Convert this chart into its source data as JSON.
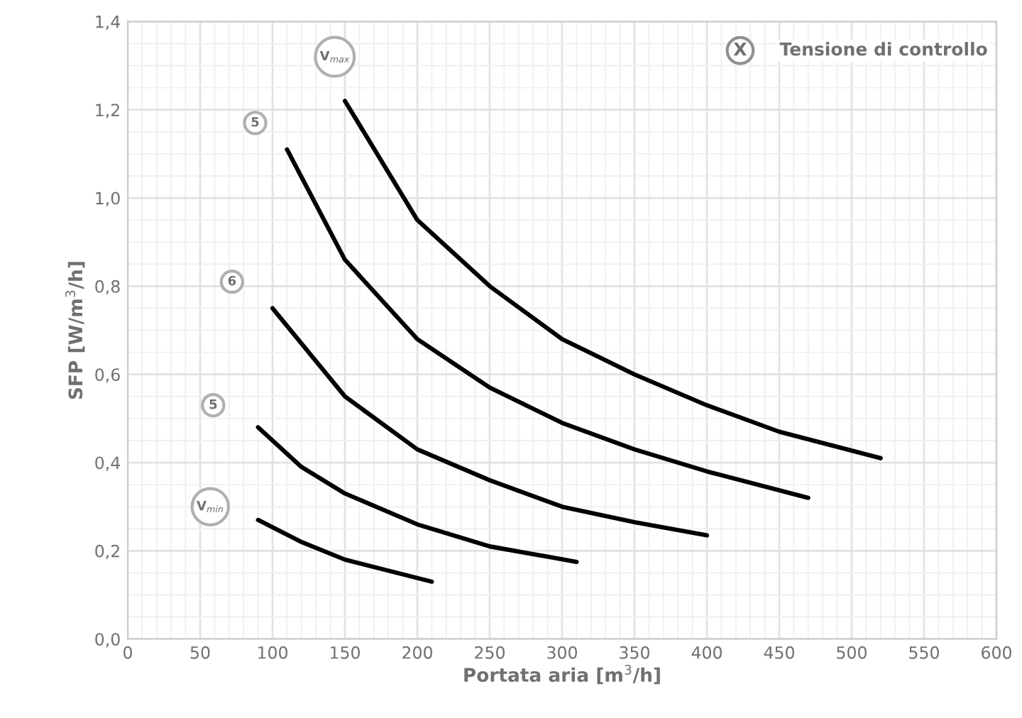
{
  "chart_data": {
    "type": "line",
    "xlabel": "Portata aria [m$^{3}$/h]",
    "ylabel": "SFP [W/m$^{3}$/h]",
    "series": [
      {
        "color": "#000000",
        "x": [
          150,
          200,
          250,
          300,
          350,
          400,
          450,
          520
        ],
        "values": [
          1.22,
          0.95,
          0.8,
          0.68,
          0.6,
          0.53,
          0.47,
          0.41
        ]
      },
      {
        "color": "#000000",
        "x": [
          110,
          150,
          200,
          250,
          300,
          350,
          400,
          470
        ],
        "values": [
          1.11,
          0.86,
          0.68,
          0.57,
          0.49,
          0.43,
          0.38,
          0.32
        ]
      },
      {
        "color": "#000000",
        "x": [
          100,
          150,
          200,
          250,
          300,
          350,
          400
        ],
        "values": [
          0.75,
          0.55,
          0.43,
          0.36,
          0.3,
          0.265,
          0.235
        ]
      },
      {
        "color": "#000000",
        "x": [
          90,
          120,
          150,
          200,
          250,
          310
        ],
        "values": [
          0.48,
          0.39,
          0.33,
          0.26,
          0.21,
          0.175
        ]
      },
      {
        "color": "#000000",
        "x": [
          90,
          120,
          150,
          210
        ],
        "values": [
          0.27,
          0.22,
          0.18,
          0.13
        ]
      }
    ],
    "annotations": [
      {
        "text": "V$_{max}$",
        "x": 143,
        "y": 1.32
      },
      {
        "text": "5",
        "x": 88,
        "y": 1.17
      },
      {
        "text": "6",
        "x": 72,
        "y": 0.81
      },
      {
        "text": "5",
        "x": 59,
        "y": 0.53
      },
      {
        "text": "V$_{min}$",
        "x": 57,
        "y": 0.3
      },
      "X",
      "Tensione di controllo"
    ],
    "xlim": [
      0,
      600
    ],
    "xticks": [
      0,
      50,
      100,
      150,
      200,
      250,
      300,
      350,
      400,
      450,
      500,
      550,
      600
    ],
    "ylim": [
      0,
      1.4
    ],
    "yticks": [
      {
        "value": 0,
        "label": "0,0"
      },
      {
        "value": 0.2,
        "label": "0,2"
      },
      {
        "value": 0.4,
        "label": "0,4"
      },
      {
        "value": 0.6,
        "label": "0,6"
      },
      {
        "value": 0.8,
        "label": "0,8"
      },
      {
        "value": 1.0,
        "label": "1,0"
      },
      {
        "value": 1.2,
        "label": "1,2"
      },
      {
        "value": 1.4,
        "label": "1,4"
      }
    ],
    "grid": true,
    "marker": "none",
    "line_style": "solid",
    "legend": false
  }
}
